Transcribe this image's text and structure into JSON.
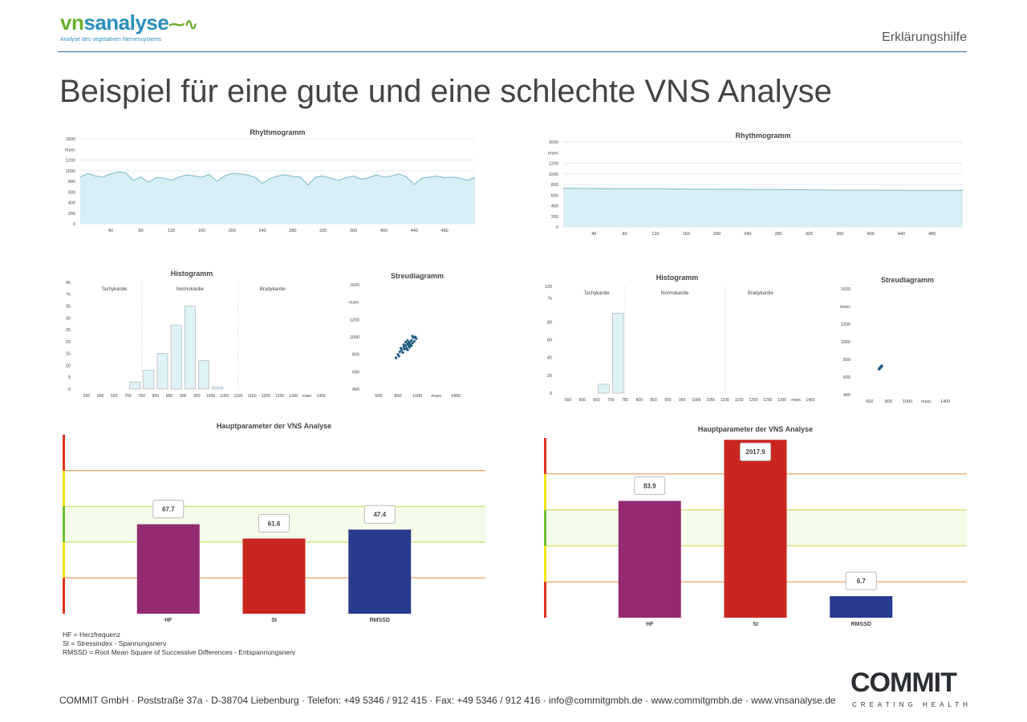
{
  "header": {
    "logo_text": "vnsanalyse",
    "logo_subtitle": "Analyse des vegetativen Nervensystems",
    "section": "Erklärungshilfe",
    "title": "Beispiel für eine gute und eine schlechte VNS Analyse"
  },
  "legend": [
    "HF = Herzfrequenz",
    "SI = Stressindex - Spannungsnerv",
    "RMSSD = Root Mean Square of Successive Differences - Entspannungsnerv"
  ],
  "footer": {
    "address": "COMMIT GmbH · Poststraße 37a · D-38704 Liebenburg · Telefon: +49 5346 / 912 415 · Fax: +49 5346 / 912 416 · info@commitgmbh.de · www.commitgmbh.de · www.vnsanalyse.de",
    "brand": "COMMIT",
    "tagline": "CREATING HEALTH"
  },
  "colors": {
    "line": "#7ab8c8",
    "fill": "#d7eef5",
    "hist_fill": "#dff2f8",
    "scatter": "#1d5a80",
    "HF": "#932a72",
    "SI": "#c8261f",
    "RMSSD": "#283a8c",
    "zone_red": "#e0301e",
    "zone_yellow": "#f5e619",
    "zone_green": "#6cbf2a"
  },
  "chart_data": [
    {
      "panel": "good",
      "type": "line",
      "title": "Rhythmogramm",
      "ylabel": "msec",
      "ylim": [
        0,
        1600
      ],
      "yticks": [
        0,
        200,
        400,
        600,
        800,
        1000,
        1200,
        1600
      ],
      "xticks": [
        40,
        80,
        120,
        160,
        200,
        240,
        280,
        320,
        360,
        400,
        440,
        480
      ],
      "xlim": [
        0,
        520
      ],
      "x": [
        0,
        10,
        20,
        30,
        40,
        50,
        60,
        70,
        80,
        90,
        100,
        110,
        120,
        130,
        140,
        150,
        160,
        170,
        180,
        190,
        200,
        210,
        220,
        230,
        240,
        250,
        260,
        270,
        280,
        290,
        300,
        310,
        320,
        330,
        340,
        350,
        360,
        370,
        380,
        390,
        400,
        410,
        420,
        430,
        440,
        450,
        460,
        470,
        480,
        490,
        500,
        510,
        520
      ],
      "values": [
        880,
        950,
        900,
        880,
        940,
        980,
        960,
        820,
        880,
        780,
        870,
        860,
        820,
        880,
        920,
        900,
        880,
        930,
        800,
        900,
        950,
        940,
        920,
        880,
        760,
        850,
        900,
        920,
        890,
        880,
        730,
        880,
        900,
        860,
        820,
        870,
        900,
        840,
        870,
        920,
        880,
        900,
        940,
        880,
        740,
        860,
        880,
        900,
        870,
        880,
        860,
        820,
        870
      ]
    },
    {
      "panel": "good",
      "type": "bar",
      "title": "Histogramm",
      "ylabel": "%",
      "ylim": [
        0,
        45
      ],
      "yticks": [
        0,
        5,
        10,
        15,
        20,
        25,
        30,
        35,
        45
      ],
      "xlim": [
        550,
        1400
      ],
      "xticks": [
        "550",
        "600",
        "650",
        "700",
        "750",
        "800",
        "850",
        "900",
        "950",
        "1000",
        "1050",
        "1100",
        "1150",
        "1200",
        "1250",
        "1300",
        "msec",
        "1400"
      ],
      "regions": [
        "Tachykardie",
        "Normokardie",
        "Bradykardie"
      ],
      "region_bounds": [
        750,
        1100
      ],
      "bins": [
        700,
        750,
        800,
        850,
        900,
        950,
        1000
      ],
      "values": [
        3,
        8,
        15,
        27,
        35,
        12,
        1
      ]
    },
    {
      "panel": "good",
      "type": "scatter",
      "title": "Streudiagramm",
      "ylabel": "msec",
      "ylim": [
        400,
        1600
      ],
      "yticks": [
        400,
        600,
        800,
        1000,
        1200,
        1600
      ],
      "xlim": [
        500,
        1500
      ],
      "xticks": [
        "600",
        "800",
        "1000",
        "msec",
        "1400"
      ],
      "points": [
        [
          780,
          760
        ],
        [
          800,
          800
        ],
        [
          820,
          830
        ],
        [
          840,
          850
        ],
        [
          860,
          880
        ],
        [
          880,
          900
        ],
        [
          900,
          920
        ],
        [
          920,
          940
        ],
        [
          940,
          960
        ],
        [
          960,
          990
        ],
        [
          980,
          1000
        ],
        [
          850,
          820
        ],
        [
          870,
          860
        ],
        [
          890,
          870
        ],
        [
          910,
          900
        ],
        [
          930,
          910
        ],
        [
          950,
          930
        ],
        [
          830,
          870
        ],
        [
          860,
          910
        ],
        [
          900,
          960
        ],
        [
          920,
          880
        ],
        [
          940,
          900
        ],
        [
          970,
          950
        ],
        [
          810,
          780
        ],
        [
          880,
          940
        ],
        [
          950,
          1010
        ],
        [
          900,
          850
        ],
        [
          990,
          980
        ],
        [
          870,
          900
        ],
        [
          910,
          930
        ]
      ]
    },
    {
      "panel": "good",
      "type": "bar",
      "title": "Hauptparameter der VNS Analyse",
      "categories": [
        "HF",
        "SI",
        "RMSSD"
      ],
      "values": [
        67.7,
        61.6,
        47.4
      ],
      "levels": [
        0.5,
        0.42,
        0.47
      ],
      "zones": [
        "red",
        "yellow",
        "green",
        "yellow",
        "red"
      ]
    },
    {
      "panel": "bad",
      "type": "line",
      "title": "Rhythmogramm",
      "ylabel": "msec",
      "ylim": [
        0,
        1600
      ],
      "yticks": [
        0,
        200,
        400,
        600,
        800,
        1000,
        1200,
        1600
      ],
      "xticks": [
        40,
        80,
        120,
        160,
        200,
        240,
        280,
        320,
        360,
        400,
        440,
        480
      ],
      "xlim": [
        0,
        520
      ],
      "x": [
        0,
        40,
        80,
        120,
        160,
        200,
        240,
        280,
        320,
        360,
        400,
        440,
        480,
        520
      ],
      "values": [
        730,
        725,
        720,
        720,
        715,
        712,
        710,
        705,
        700,
        695,
        695,
        690,
        690,
        690
      ]
    },
    {
      "panel": "bad",
      "type": "bar",
      "title": "Histogramm",
      "ylabel": "%",
      "ylim": [
        0,
        120
      ],
      "yticks": [
        0,
        20,
        40,
        60,
        80,
        120
      ],
      "xlim": [
        550,
        1400
      ],
      "xticks": [
        "550",
        "600",
        "650",
        "700",
        "750",
        "800",
        "850",
        "900",
        "950",
        "1000",
        "1050",
        "1100",
        "1150",
        "1200",
        "1250",
        "1300",
        "msec",
        "1400"
      ],
      "regions": [
        "Tachykardie",
        "Normokardie",
        "Bradykardie"
      ],
      "region_bounds": [
        750,
        1100
      ],
      "bins": [
        650,
        700
      ],
      "values": [
        10,
        90
      ]
    },
    {
      "panel": "bad",
      "type": "scatter",
      "title": "Streudiagramm",
      "ylabel": "msec",
      "ylim": [
        400,
        1600
      ],
      "yticks": [
        400,
        600,
        800,
        1000,
        1200,
        1600
      ],
      "xlim": [
        500,
        1500
      ],
      "xticks": [
        "600",
        "800",
        "1000",
        "msec",
        "1400"
      ],
      "points": [
        [
          700,
          690
        ],
        [
          705,
          700
        ],
        [
          710,
          705
        ],
        [
          715,
          712
        ],
        [
          720,
          718
        ],
        [
          725,
          722
        ],
        [
          730,
          728
        ],
        [
          712,
          700
        ],
        [
          722,
          715
        ]
      ]
    },
    {
      "panel": "bad",
      "type": "bar",
      "title": "Hauptparameter der VNS Analyse",
      "categories": [
        "HF",
        "SI",
        "RMSSD"
      ],
      "values": [
        83.9,
        2017.9,
        6.7
      ],
      "levels": [
        0.65,
        0.99,
        0.12
      ],
      "zones": [
        "red",
        "yellow",
        "green",
        "yellow",
        "red"
      ]
    }
  ]
}
